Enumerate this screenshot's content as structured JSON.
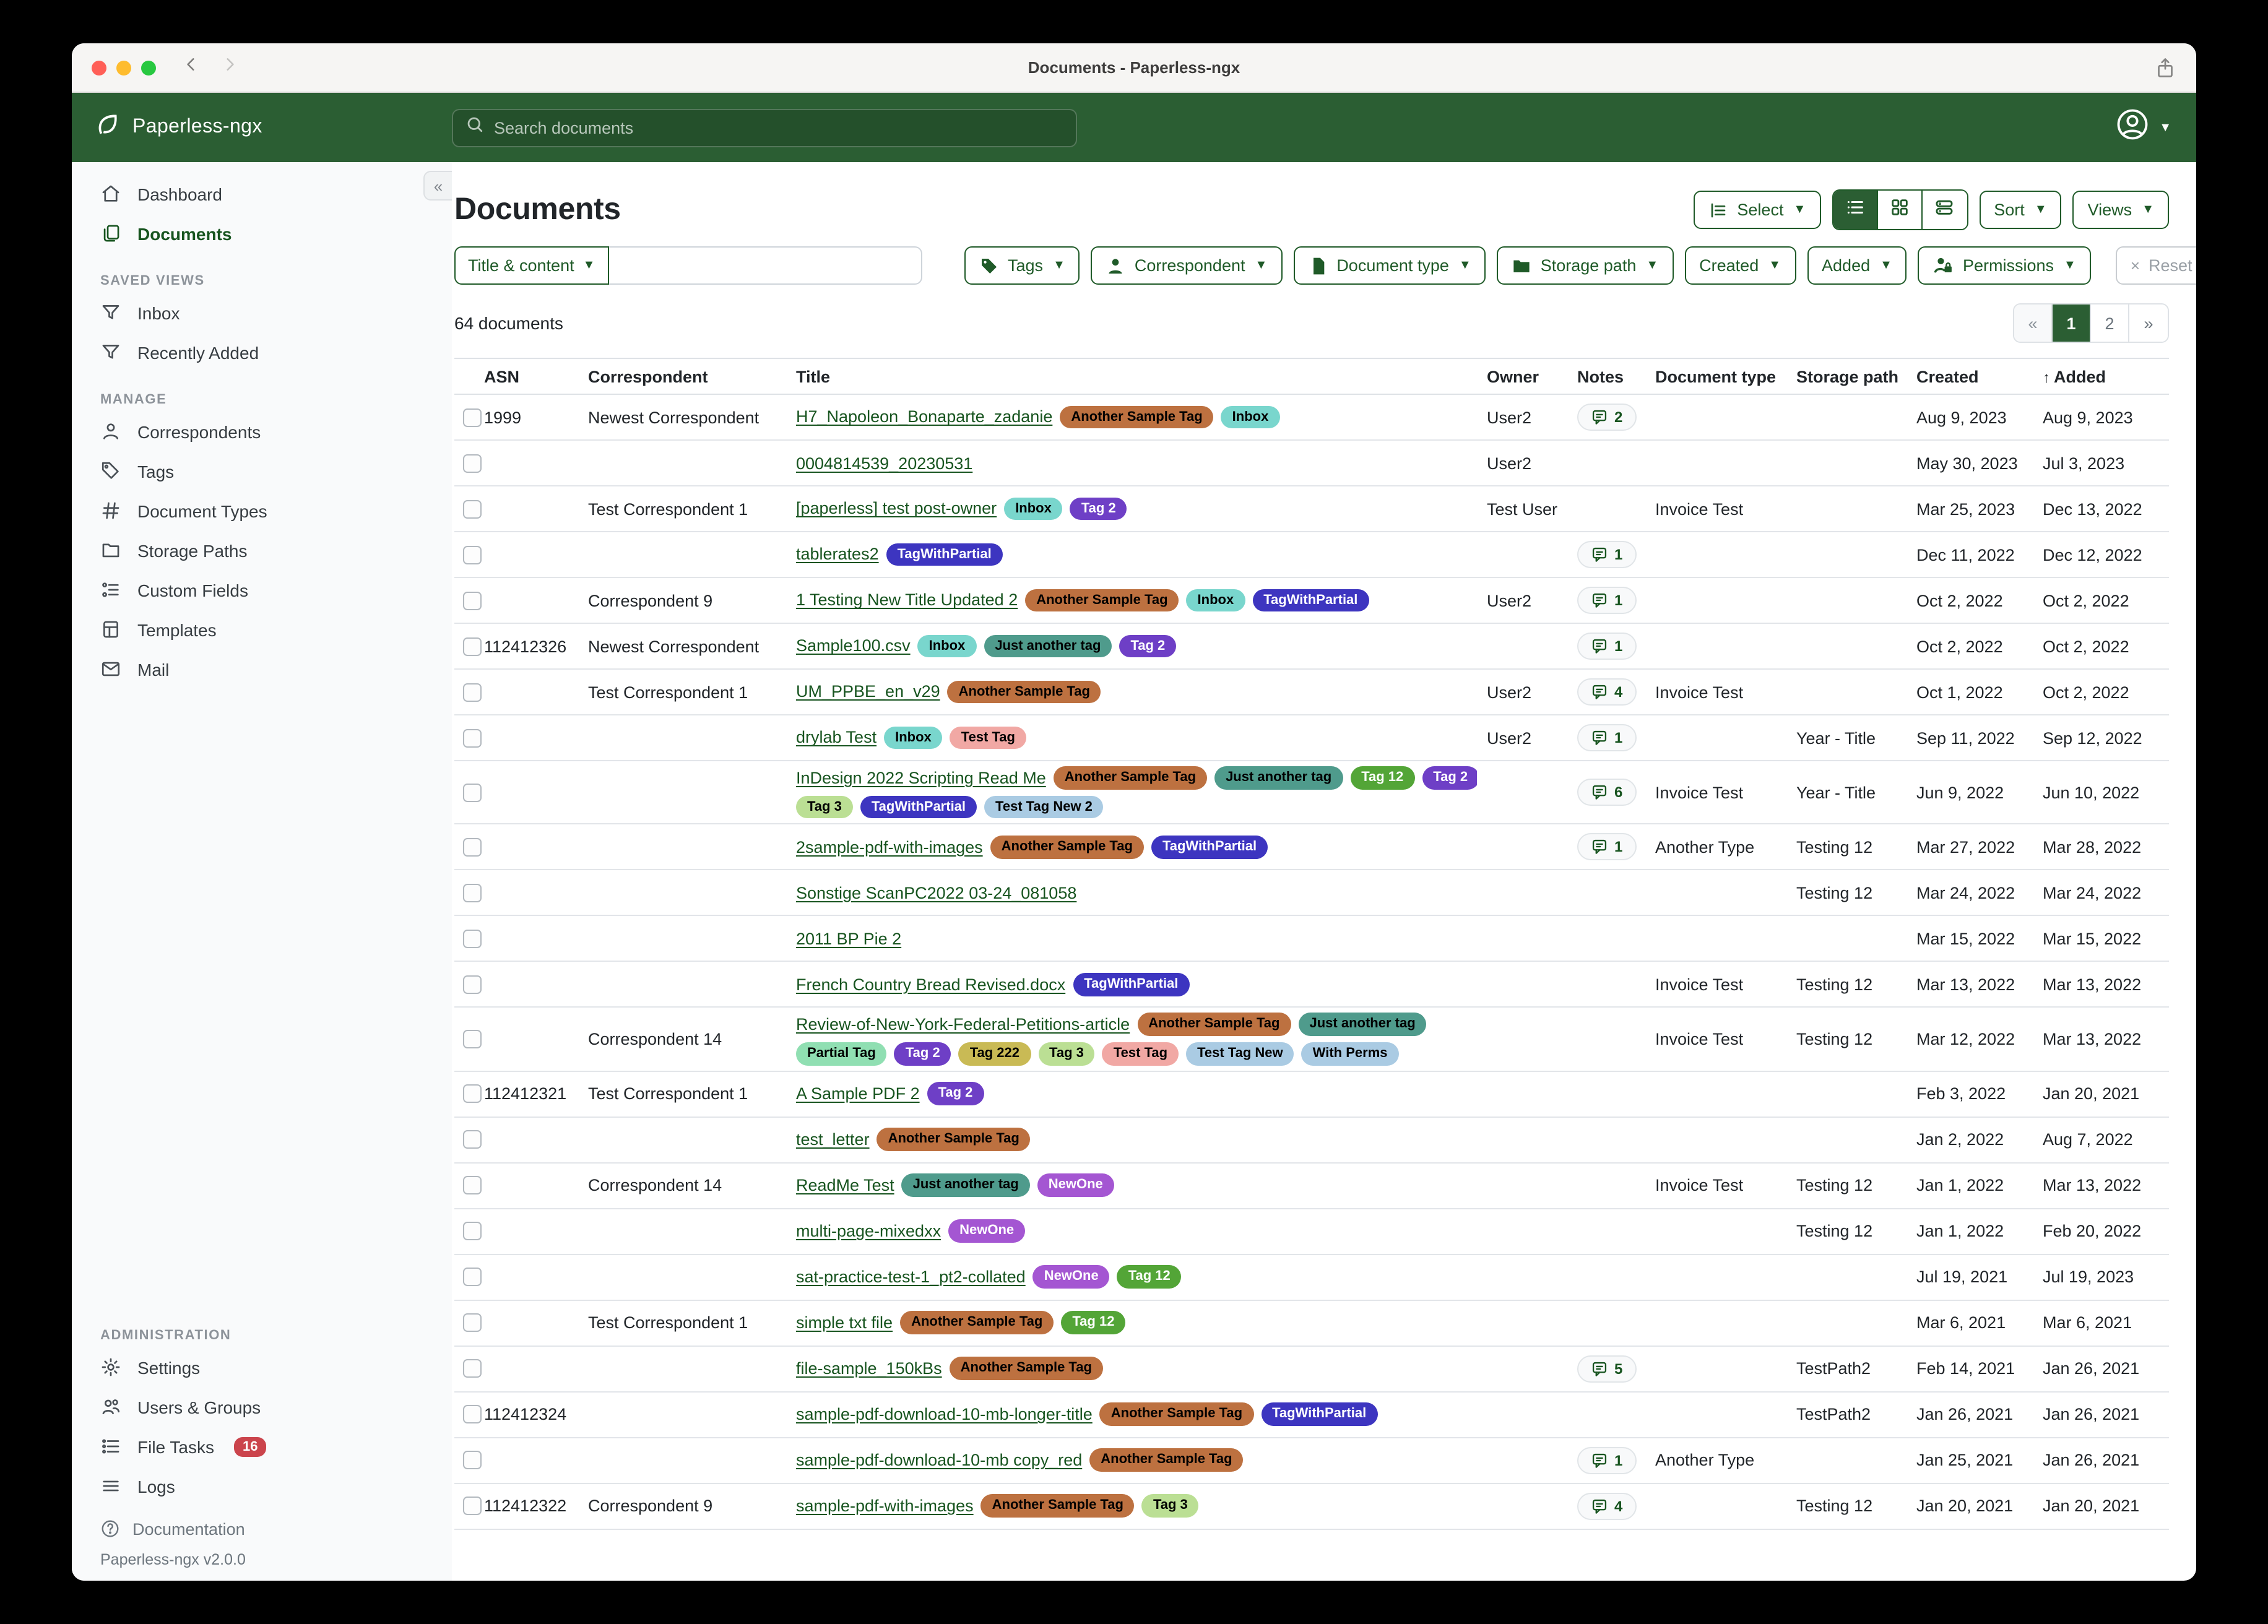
{
  "window": {
    "title": "Documents - Paperless-ngx"
  },
  "navbar": {
    "brand": "Paperless-ngx",
    "search_placeholder": "Search documents"
  },
  "sidebar": {
    "sections": [
      {
        "header": "",
        "items": [
          {
            "icon": "home",
            "label": "Dashboard",
            "active": false
          },
          {
            "icon": "docs",
            "label": "Documents",
            "active": true
          }
        ]
      },
      {
        "header": "SAVED VIEWS",
        "items": [
          {
            "icon": "funnel",
            "label": "Inbox",
            "active": false
          },
          {
            "icon": "funnel",
            "label": "Recently Added",
            "active": false
          }
        ]
      },
      {
        "header": "MANAGE",
        "items": [
          {
            "icon": "person",
            "label": "Correspondents",
            "active": false
          },
          {
            "icon": "tags",
            "label": "Tags",
            "active": false
          },
          {
            "icon": "hash",
            "label": "Document Types",
            "active": false
          },
          {
            "icon": "folder",
            "label": "Storage Paths",
            "active": false
          },
          {
            "icon": "fields",
            "label": "Custom Fields",
            "active": false
          },
          {
            "icon": "template",
            "label": "Templates",
            "active": false
          },
          {
            "icon": "mail",
            "label": "Mail",
            "active": false
          }
        ]
      },
      {
        "header": "ADMINISTRATION",
        "items": [
          {
            "icon": "gear",
            "label": "Settings",
            "active": false
          },
          {
            "icon": "users",
            "label": "Users & Groups",
            "active": false
          },
          {
            "icon": "tasks",
            "label": "File Tasks",
            "badge": "16",
            "active": false
          },
          {
            "icon": "logs",
            "label": "Logs",
            "active": false
          }
        ]
      }
    ],
    "footer": {
      "documentation": "Documentation",
      "version": "Paperless-ngx v2.0.0"
    }
  },
  "toolbar": {
    "page_title": "Documents",
    "select_label": "Select",
    "sort_label": "Sort",
    "views_label": "Views"
  },
  "filters": {
    "title_content_label": "Title & content",
    "search_value": "",
    "buttons": [
      {
        "icon": "tagF",
        "label": "Tags"
      },
      {
        "icon": "personF",
        "label": "Correspondent"
      },
      {
        "icon": "fileF",
        "label": "Document type"
      },
      {
        "icon": "folderF",
        "label": "Storage path"
      },
      {
        "icon": "",
        "label": "Created"
      },
      {
        "icon": "",
        "label": "Added"
      },
      {
        "icon": "permF",
        "label": "Permissions"
      }
    ],
    "reset_label": "Reset filters"
  },
  "status": {
    "count_text": "64 documents"
  },
  "pagination": {
    "prev": "«",
    "pages": [
      "1",
      "2"
    ],
    "active_page": "1",
    "next": "»"
  },
  "tag_colors": {
    "Another Sample Tag": {
      "bg": "#bd7140",
      "fg": "#000000"
    },
    "Inbox": {
      "bg": "#79d6cd",
      "fg": "#000000"
    },
    "Tag 2": {
      "bg": "#6e3fc6",
      "fg": "#ffffff"
    },
    "TagWithPartial": {
      "bg": "#3d35c0",
      "fg": "#ffffff"
    },
    "Just another tag": {
      "bg": "#4f9b8c",
      "fg": "#000000"
    },
    "Tag 12": {
      "bg": "#53a537",
      "fg": "#ffffff"
    },
    "Tag 3": {
      "bg": "#bbdf94",
      "fg": "#000000"
    },
    "Test Tag": {
      "bg": "#f1a8a4",
      "fg": "#000000"
    },
    "Test Tag New 2": {
      "bg": "#aacbe3",
      "fg": "#000000"
    },
    "Partial Tag": {
      "bg": "#90dfb2",
      "fg": "#000000"
    },
    "Tag 222": {
      "bg": "#c9ba55",
      "fg": "#000000"
    },
    "Test Tag New": {
      "bg": "#aacbe3",
      "fg": "#000000"
    },
    "With Perms": {
      "bg": "#aacbe3",
      "fg": "#000000"
    },
    "NewOne": {
      "bg": "#a456d2",
      "fg": "#ffffff"
    }
  },
  "table": {
    "columns": [
      "ASN",
      "Correspondent",
      "Title",
      "Owner",
      "Notes",
      "Document type",
      "Storage path",
      "Created",
      "Added"
    ],
    "sorted_column": "Added",
    "sort_direction": "asc",
    "rows": [
      {
        "asn": "1999",
        "correspondent": "Newest Correspondent",
        "title": "H7_Napoleon_Bonaparte_zadanie",
        "tags": [
          "Another Sample Tag",
          "Inbox"
        ],
        "tags2": [],
        "owner": "User2",
        "notes": "2",
        "doctype": "",
        "storage": "",
        "created": "Aug 9, 2023",
        "added": "Aug 9, 2023"
      },
      {
        "asn": "",
        "correspondent": "",
        "title": "0004814539_20230531",
        "tags": [],
        "tags2": [],
        "owner": "User2",
        "notes": "",
        "doctype": "",
        "storage": "",
        "created": "May 30, 2023",
        "added": "Jul 3, 2023"
      },
      {
        "asn": "",
        "correspondent": "Test Correspondent 1",
        "title": "[paperless] test post-owner",
        "tags": [
          "Inbox",
          "Tag 2"
        ],
        "tags2": [],
        "owner": "Test User",
        "notes": "",
        "doctype": "Invoice Test",
        "storage": "",
        "created": "Mar 25, 2023",
        "added": "Dec 13, 2022"
      },
      {
        "asn": "",
        "correspondent": "",
        "title": "tablerates2",
        "tags": [
          "TagWithPartial"
        ],
        "tags2": [],
        "owner": "",
        "notes": "1",
        "doctype": "",
        "storage": "",
        "created": "Dec 11, 2022",
        "added": "Dec 12, 2022"
      },
      {
        "asn": "",
        "correspondent": "Correspondent 9",
        "title": "1 Testing New Title Updated 2",
        "tags": [
          "Another Sample Tag",
          "Inbox",
          "TagWithPartial"
        ],
        "tags2": [],
        "owner": "User2",
        "notes": "1",
        "doctype": "",
        "storage": "",
        "created": "Oct 2, 2022",
        "added": "Oct 2, 2022"
      },
      {
        "asn": "112412326",
        "correspondent": "Newest Correspondent",
        "title": "Sample100.csv",
        "tags": [
          "Inbox",
          "Just another tag",
          "Tag 2"
        ],
        "tags2": [],
        "owner": "",
        "notes": "1",
        "doctype": "",
        "storage": "",
        "created": "Oct 2, 2022",
        "added": "Oct 2, 2022"
      },
      {
        "asn": "",
        "correspondent": "Test Correspondent 1",
        "title": "UM_PPBE_en_v29",
        "tags": [
          "Another Sample Tag"
        ],
        "tags2": [],
        "owner": "User2",
        "notes": "4",
        "doctype": "Invoice Test",
        "storage": "",
        "created": "Oct 1, 2022",
        "added": "Oct 2, 2022"
      },
      {
        "asn": "",
        "correspondent": "",
        "title": "drylab Test",
        "tags": [
          "Inbox",
          "Test Tag"
        ],
        "tags2": [],
        "owner": "User2",
        "notes": "1",
        "doctype": "",
        "storage": "Year - Title",
        "created": "Sep 11, 2022",
        "added": "Sep 12, 2022"
      },
      {
        "asn": "",
        "correspondent": "",
        "title": "InDesign 2022 Scripting Read Me",
        "tags": [
          "Another Sample Tag",
          "Just another tag",
          "Tag 12",
          "Tag 2"
        ],
        "tags2": [
          "Tag 3",
          "TagWithPartial",
          "Test Tag New 2"
        ],
        "owner": "",
        "notes": "6",
        "doctype": "Invoice Test",
        "storage": "Year - Title",
        "created": "Jun 9, 2022",
        "added": "Jun 10, 2022"
      },
      {
        "asn": "",
        "correspondent": "",
        "title": "2sample-pdf-with-images",
        "tags": [
          "Another Sample Tag",
          "TagWithPartial"
        ],
        "tags2": [],
        "owner": "",
        "notes": "1",
        "doctype": "Another Type",
        "storage": "Testing 12",
        "created": "Mar 27, 2022",
        "added": "Mar 28, 2022"
      },
      {
        "asn": "",
        "correspondent": "",
        "title": "Sonstige ScanPC2022 03-24_081058",
        "tags": [],
        "tags2": [],
        "owner": "",
        "notes": "",
        "doctype": "",
        "storage": "Testing 12",
        "created": "Mar 24, 2022",
        "added": "Mar 24, 2022"
      },
      {
        "asn": "",
        "correspondent": "",
        "title": "2011 BP Pie 2",
        "tags": [],
        "tags2": [],
        "owner": "",
        "notes": "",
        "doctype": "",
        "storage": "",
        "created": "Mar 15, 2022",
        "added": "Mar 15, 2022"
      },
      {
        "asn": "",
        "correspondent": "",
        "title": "French Country Bread Revised.docx",
        "tags": [
          "TagWithPartial"
        ],
        "tags2": [],
        "owner": "",
        "notes": "",
        "doctype": "Invoice Test",
        "storage": "Testing 12",
        "created": "Mar 13, 2022",
        "added": "Mar 13, 2022"
      },
      {
        "asn": "",
        "correspondent": "Correspondent 14",
        "title": "Review-of-New-York-Federal-Petitions-article",
        "tags": [
          "Another Sample Tag",
          "Just another tag"
        ],
        "tags2": [
          "Partial Tag",
          "Tag 2",
          "Tag 222",
          "Tag 3",
          "Test Tag",
          "Test Tag New",
          "With Perms"
        ],
        "owner": "",
        "notes": "",
        "doctype": "Invoice Test",
        "storage": "Testing 12",
        "created": "Mar 12, 2022",
        "added": "Mar 13, 2022"
      },
      {
        "asn": "112412321",
        "correspondent": "Test Correspondent 1",
        "title": "A Sample PDF 2",
        "tags": [
          "Tag 2"
        ],
        "tags2": [],
        "owner": "",
        "notes": "",
        "doctype": "",
        "storage": "",
        "created": "Feb 3, 2022",
        "added": "Jan 20, 2021"
      },
      {
        "asn": "",
        "correspondent": "",
        "title": "test_letter",
        "tags": [
          "Another Sample Tag"
        ],
        "tags2": [],
        "owner": "",
        "notes": "",
        "doctype": "",
        "storage": "",
        "created": "Jan 2, 2022",
        "added": "Aug 7, 2022"
      },
      {
        "asn": "",
        "correspondent": "Correspondent 14",
        "title": "ReadMe Test",
        "tags": [
          "Just another tag",
          "NewOne"
        ],
        "tags2": [],
        "owner": "",
        "notes": "",
        "doctype": "Invoice Test",
        "storage": "Testing 12",
        "created": "Jan 1, 2022",
        "added": "Mar 13, 2022"
      },
      {
        "asn": "",
        "correspondent": "",
        "title": "multi-page-mixedxx",
        "tags": [
          "NewOne"
        ],
        "tags2": [],
        "owner": "",
        "notes": "",
        "doctype": "",
        "storage": "Testing 12",
        "created": "Jan 1, 2022",
        "added": "Feb 20, 2022"
      },
      {
        "asn": "",
        "correspondent": "",
        "title": "sat-practice-test-1_pt2-collated",
        "tags": [
          "NewOne",
          "Tag 12"
        ],
        "tags2": [],
        "owner": "",
        "notes": "",
        "doctype": "",
        "storage": "",
        "created": "Jul 19, 2021",
        "added": "Jul 19, 2023"
      },
      {
        "asn": "",
        "correspondent": "Test Correspondent 1",
        "title": "simple txt file",
        "tags": [
          "Another Sample Tag",
          "Tag 12"
        ],
        "tags2": [],
        "owner": "",
        "notes": "",
        "doctype": "",
        "storage": "",
        "created": "Mar 6, 2021",
        "added": "Mar 6, 2021"
      },
      {
        "asn": "",
        "correspondent": "",
        "title": "file-sample_150kBs",
        "tags": [
          "Another Sample Tag"
        ],
        "tags2": [],
        "owner": "",
        "notes": "5",
        "doctype": "",
        "storage": "TestPath2",
        "created": "Feb 14, 2021",
        "added": "Jan 26, 2021"
      },
      {
        "asn": "112412324",
        "correspondent": "",
        "title": "sample-pdf-download-10-mb-longer-title",
        "tags": [
          "Another Sample Tag",
          "TagWithPartial"
        ],
        "tags2": [],
        "owner": "",
        "notes": "",
        "doctype": "",
        "storage": "TestPath2",
        "created": "Jan 26, 2021",
        "added": "Jan 26, 2021"
      },
      {
        "asn": "",
        "correspondent": "",
        "title": "sample-pdf-download-10-mb copy_red",
        "tags": [
          "Another Sample Tag"
        ],
        "tags2": [],
        "owner": "",
        "notes": "1",
        "doctype": "Another Type",
        "storage": "",
        "created": "Jan 25, 2021",
        "added": "Jan 26, 2021"
      },
      {
        "asn": "112412322",
        "correspondent": "Correspondent 9",
        "title": "sample-pdf-with-images",
        "tags": [
          "Another Sample Tag",
          "Tag 3"
        ],
        "tags2": [],
        "owner": "",
        "notes": "4",
        "doctype": "",
        "storage": "Testing 12",
        "created": "Jan 20, 2021",
        "added": "Jan 20, 2021"
      }
    ]
  }
}
